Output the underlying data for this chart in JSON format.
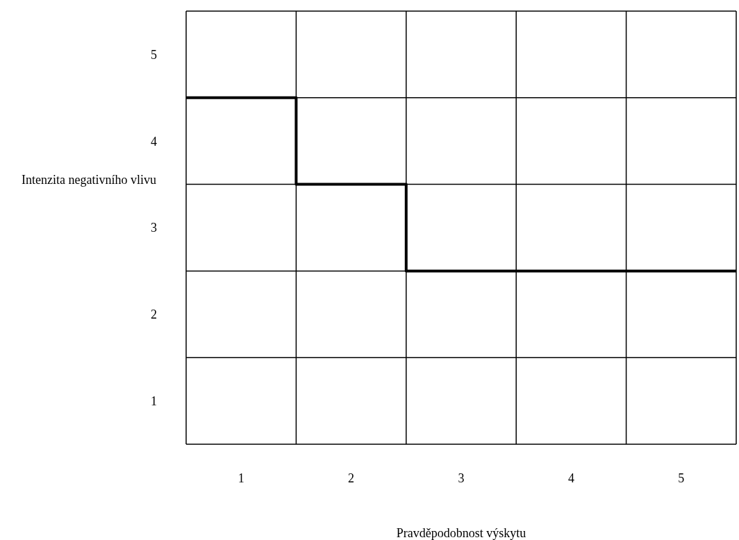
{
  "chart_data": {
    "type": "step",
    "xlabel": "Pravděpodobnost výskytu",
    "ylabel": "Intenzita negativního vlivu",
    "x": [
      0.5,
      1.5,
      2.5,
      5.5
    ],
    "series": [
      {
        "color": "#000000",
        "values": [
          4.5,
          3.5,
          2.5,
          2.5
        ]
      }
    ],
    "xlim": [
      0.5,
      5.5
    ],
    "ylim": [
      0.5,
      5.5
    ],
    "xticks": [
      {
        "value": 0.5,
        "label": null
      },
      1,
      {
        "value": 1.5,
        "label": null
      },
      2,
      {
        "value": 2.5,
        "label": null
      },
      3,
      {
        "value": 3.5,
        "label": null
      },
      4,
      {
        "value": 4.5,
        "label": null
      },
      5,
      {
        "value": 5.5,
        "label": null
      }
    ],
    "yticks": [
      {
        "value": 0.5,
        "label": null
      },
      1,
      {
        "value": 1.5,
        "label": null
      },
      2,
      {
        "value": 2.5,
        "label": null
      },
      3,
      {
        "value": 3.5,
        "label": null
      },
      4,
      {
        "value": 4.5,
        "label": null
      },
      5,
      {
        "value": 5.5,
        "label": null
      }
    ],
    "grid": true
  }
}
